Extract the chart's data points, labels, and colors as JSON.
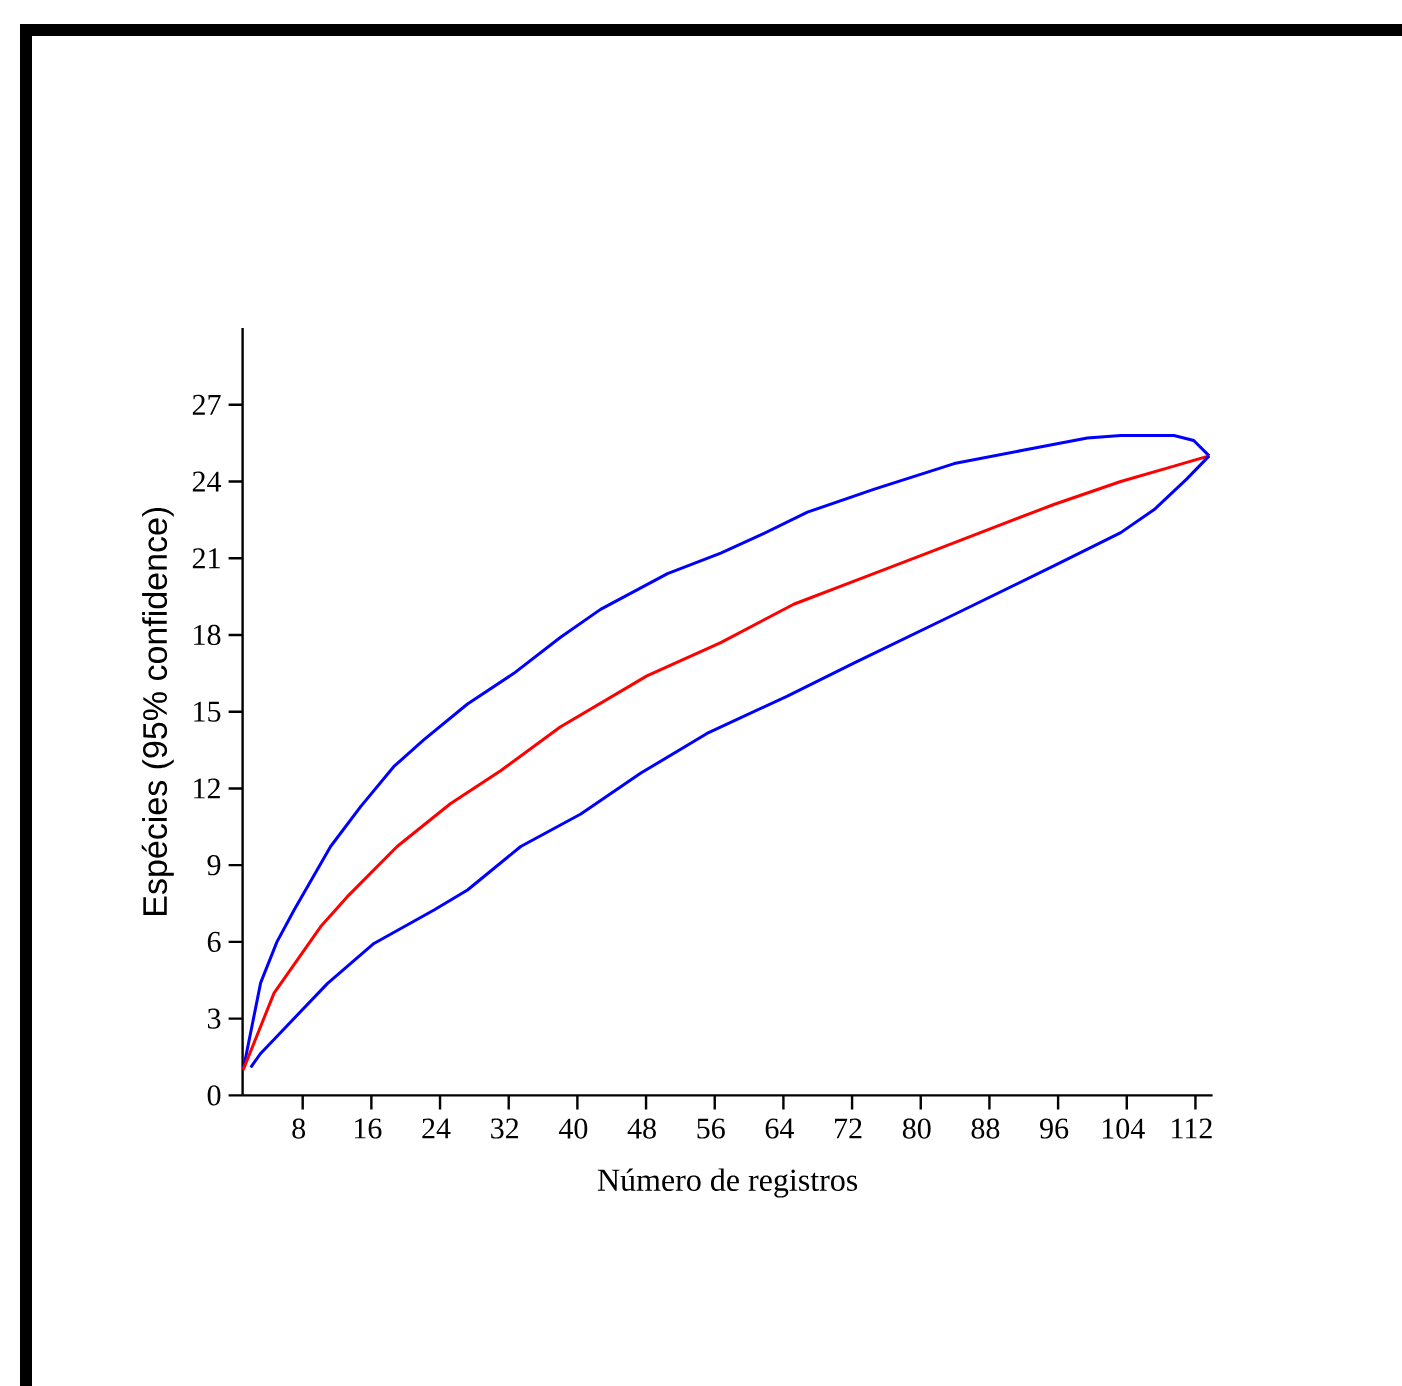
{
  "chart_data": {
    "type": "line",
    "xlabel": "Número de registros",
    "ylabel": "Espécies  (95% confidence)",
    "xlim": [
      1,
      114
    ],
    "ylim": [
      0,
      30
    ],
    "xticks": [
      8,
      16,
      24,
      32,
      40,
      48,
      56,
      64,
      72,
      80,
      88,
      96,
      104,
      112
    ],
    "yticks": [
      0,
      3,
      6,
      9,
      12,
      15,
      18,
      21,
      24,
      27
    ],
    "marker": "none",
    "line_style": "solid",
    "grid": false,
    "series": [
      {
        "color": "#0000ff",
        "x": [
          1.07,
          3.1,
          5,
          7.0,
          11.25,
          14.75,
          18.6,
          22.1,
          27.2,
          32.6,
          38.0,
          42.7,
          50.5,
          56.7,
          61.3,
          66.8,
          74.6,
          83.9,
          91.6,
          99.4,
          103.3,
          109.5,
          111.8,
          113.6
        ],
        "values": [
          1.0,
          4.4,
          6.0,
          7.25,
          9.73,
          11.29,
          12.85,
          13.9,
          15.3,
          16.5,
          17.9,
          19.0,
          20.4,
          21.2,
          21.9,
          22.8,
          23.7,
          24.7,
          25.2,
          25.7,
          25.8,
          25.8,
          25.6,
          25.0
        ]
      },
      {
        "color": "#ff0000",
        "x": [
          1.07,
          4.66,
          10.1,
          13.2,
          19.0,
          25.2,
          31.1,
          38.0,
          48.1,
          56.7,
          65.2,
          73.0,
          80.0,
          87.7,
          95.5,
          103.3,
          109.5,
          113.6
        ],
        "values": [
          1.0,
          4.0,
          6.6,
          7.77,
          9.73,
          11.4,
          12.7,
          14.4,
          16.4,
          17.7,
          19.2,
          20.2,
          21.1,
          22.1,
          23.1,
          24.0,
          24.6,
          25.0
        ]
      },
      {
        "color": "#0000ff",
        "x": [
          1.95,
          3.1,
          10.9,
          16.3,
          23.3,
          27.2,
          33.4,
          40.4,
          47.4,
          55.1,
          64.4,
          72.2,
          83.9,
          95.5,
          103.3,
          107.2,
          111.0,
          113.6
        ],
        "values": [
          1.1,
          1.64,
          4.38,
          5.94,
          7.25,
          8.03,
          9.73,
          11.0,
          12.6,
          14.15,
          15.6,
          16.9,
          18.8,
          20.7,
          22.0,
          22.9,
          24.1,
          25.0
        ]
      }
    ]
  }
}
